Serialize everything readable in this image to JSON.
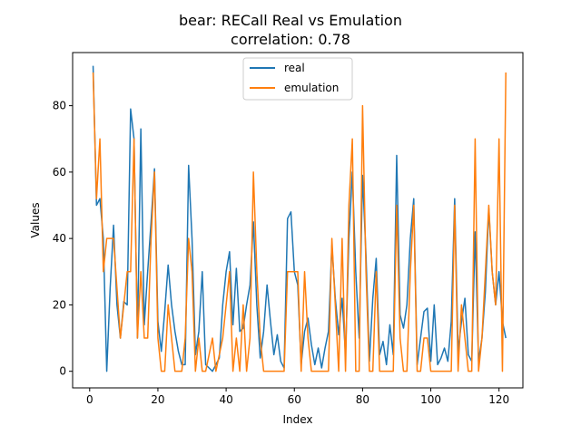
{
  "chart_data": {
    "type": "line",
    "title": "bear: RECall Real vs Emulation",
    "subtitle": "correlation: 0.78",
    "xlabel": "Index",
    "ylabel": "Values",
    "xlim": [
      -5,
      127
    ],
    "ylim": [
      -5,
      96
    ],
    "xticks": [
      0,
      20,
      40,
      60,
      80,
      100,
      120
    ],
    "yticks": [
      0,
      20,
      40,
      60,
      80
    ],
    "grid": false,
    "legend_position": "top-center",
    "x": [
      1,
      2,
      3,
      4,
      5,
      6,
      7,
      8,
      9,
      10,
      11,
      12,
      13,
      14,
      15,
      16,
      17,
      18,
      19,
      20,
      21,
      22,
      23,
      24,
      25,
      26,
      27,
      28,
      29,
      30,
      31,
      32,
      33,
      34,
      35,
      36,
      37,
      38,
      39,
      40,
      41,
      42,
      43,
      44,
      45,
      46,
      47,
      48,
      49,
      50,
      51,
      52,
      53,
      54,
      55,
      56,
      57,
      58,
      59,
      60,
      61,
      62,
      63,
      64,
      65,
      66,
      67,
      68,
      69,
      70,
      71,
      72,
      73,
      74,
      75,
      76,
      77,
      78,
      79,
      80,
      81,
      82,
      83,
      84,
      85,
      86,
      87,
      88,
      89,
      90,
      91,
      92,
      93,
      94,
      95,
      96,
      97,
      98,
      99,
      100,
      101,
      102,
      103,
      104,
      105,
      106,
      107,
      108,
      109,
      110,
      111,
      112,
      113,
      114,
      115,
      116,
      117,
      118,
      119,
      120,
      121,
      122
    ],
    "series": [
      {
        "name": "real",
        "color": "#1f77b4",
        "values": [
          92,
          50,
          52,
          40,
          0,
          25,
          44,
          20,
          10,
          21,
          20,
          79,
          70,
          10,
          73,
          14,
          30,
          45,
          61,
          15,
          6,
          18,
          32,
          20,
          12,
          6,
          2,
          2,
          62,
          40,
          5,
          12,
          30,
          2,
          1,
          0,
          2,
          4,
          20,
          30,
          36,
          14,
          31,
          12,
          13,
          20,
          26,
          45,
          20,
          4,
          12,
          26,
          15,
          5,
          11,
          3,
          1,
          46,
          48,
          30,
          26,
          2,
          12,
          16,
          8,
          2,
          7,
          1,
          7,
          12,
          38,
          22,
          11,
          22,
          5,
          40,
          60,
          30,
          10,
          59,
          35,
          3,
          22,
          34,
          5,
          9,
          2,
          14,
          5,
          65,
          17,
          13,
          20,
          40,
          52,
          2,
          10,
          18,
          19,
          3,
          20,
          2,
          4,
          7,
          3,
          15,
          52,
          6,
          15,
          22,
          5,
          3,
          42,
          3,
          10,
          24,
          49,
          30,
          20,
          30,
          15,
          10
        ]
      },
      {
        "name": "emulation",
        "color": "#ff7f0e",
        "values": [
          90,
          52,
          70,
          30,
          40,
          40,
          40,
          25,
          10,
          20,
          30,
          30,
          70,
          10,
          30,
          10,
          10,
          40,
          60,
          10,
          0,
          0,
          20,
          10,
          0,
          0,
          0,
          10,
          40,
          30,
          0,
          10,
          0,
          0,
          5,
          10,
          0,
          5,
          10,
          20,
          30,
          0,
          10,
          0,
          20,
          0,
          10,
          60,
          30,
          10,
          0,
          0,
          0,
          0,
          0,
          0,
          0,
          30,
          30,
          30,
          30,
          0,
          30,
          10,
          0,
          0,
          0,
          0,
          0,
          0,
          40,
          20,
          0,
          40,
          0,
          50,
          70,
          0,
          0,
          80,
          30,
          0,
          0,
          30,
          0,
          0,
          0,
          0,
          0,
          50,
          10,
          0,
          0,
          30,
          50,
          0,
          0,
          10,
          10,
          0,
          0,
          0,
          0,
          0,
          0,
          0,
          50,
          0,
          20,
          10,
          0,
          0,
          70,
          0,
          10,
          30,
          50,
          30,
          20,
          70,
          0,
          90
        ]
      }
    ]
  }
}
